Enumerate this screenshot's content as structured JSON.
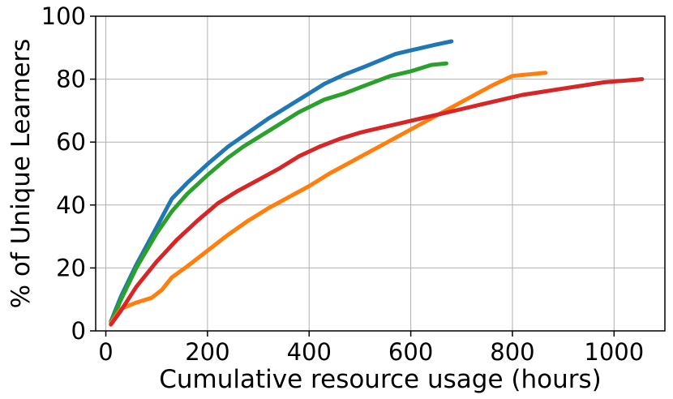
{
  "chart_data": {
    "type": "line",
    "xlabel": "Cumulative resource usage (hours)",
    "ylabel": "% of Unique Learners",
    "xlim": [
      -20,
      1100
    ],
    "ylim": [
      0,
      100
    ],
    "xticks": [
      0,
      200,
      400,
      600,
      800,
      1000
    ],
    "xtick_labels": [
      "0",
      "200",
      "400",
      "600",
      "800",
      "1000"
    ],
    "yticks": [
      0,
      20,
      40,
      60,
      80,
      100
    ],
    "ytick_labels": [
      "0",
      "20",
      "40",
      "60",
      "80",
      "100"
    ],
    "grid": true,
    "series": [
      {
        "color": "#1f77b4",
        "x": [
          10,
          30,
          60,
          100,
          130,
          160,
          200,
          240,
          280,
          320,
          360,
          400,
          430,
          470,
          510,
          540,
          570,
          610,
          650,
          680
        ],
        "y": [
          3,
          11,
          21,
          33,
          42,
          47,
          53,
          58.5,
          63,
          67.5,
          71.5,
          75.5,
          78.5,
          81.5,
          84,
          86,
          88,
          89.5,
          91,
          92
        ]
      },
      {
        "color": "#2ca02c",
        "x": [
          10,
          30,
          60,
          100,
          130,
          160,
          200,
          240,
          270,
          300,
          340,
          380,
          430,
          470,
          510,
          560,
          600,
          640,
          670
        ],
        "y": [
          2.5,
          10,
          20,
          31,
          38,
          43.5,
          49.5,
          55,
          58.5,
          61.5,
          65.5,
          69.5,
          73.5,
          75.5,
          78,
          81,
          82.5,
          84.5,
          85
        ]
      },
      {
        "color": "#ff7f0e",
        "x": [
          10,
          30,
          60,
          90,
          110,
          130,
          160,
          200,
          240,
          280,
          320,
          360,
          400,
          440,
          480,
          520,
          560,
          600,
          640,
          680,
          720,
          760,
          800,
          830,
          865
        ],
        "y": [
          2.5,
          7,
          9,
          10.5,
          13,
          17,
          20.5,
          25.5,
          30.5,
          35,
          39,
          42.5,
          46,
          50,
          53.5,
          57,
          60.5,
          64,
          67.5,
          71,
          74.5,
          78,
          81,
          81.5,
          82
        ]
      },
      {
        "color": "#d62728",
        "x": [
          10,
          30,
          60,
          100,
          140,
          180,
          220,
          260,
          300,
          340,
          380,
          420,
          460,
          500,
          540,
          580,
          620,
          660,
          700,
          740,
          780,
          820,
          860,
          900,
          940,
          980,
          1020,
          1055
        ],
        "y": [
          2,
          6.5,
          14,
          22,
          29,
          35,
          40.5,
          44.5,
          48,
          51.5,
          55.5,
          58.5,
          61,
          63,
          64.5,
          66,
          67.5,
          69,
          70.5,
          72,
          73.5,
          75,
          76,
          77,
          78,
          79,
          79.5,
          80
        ]
      }
    ]
  }
}
